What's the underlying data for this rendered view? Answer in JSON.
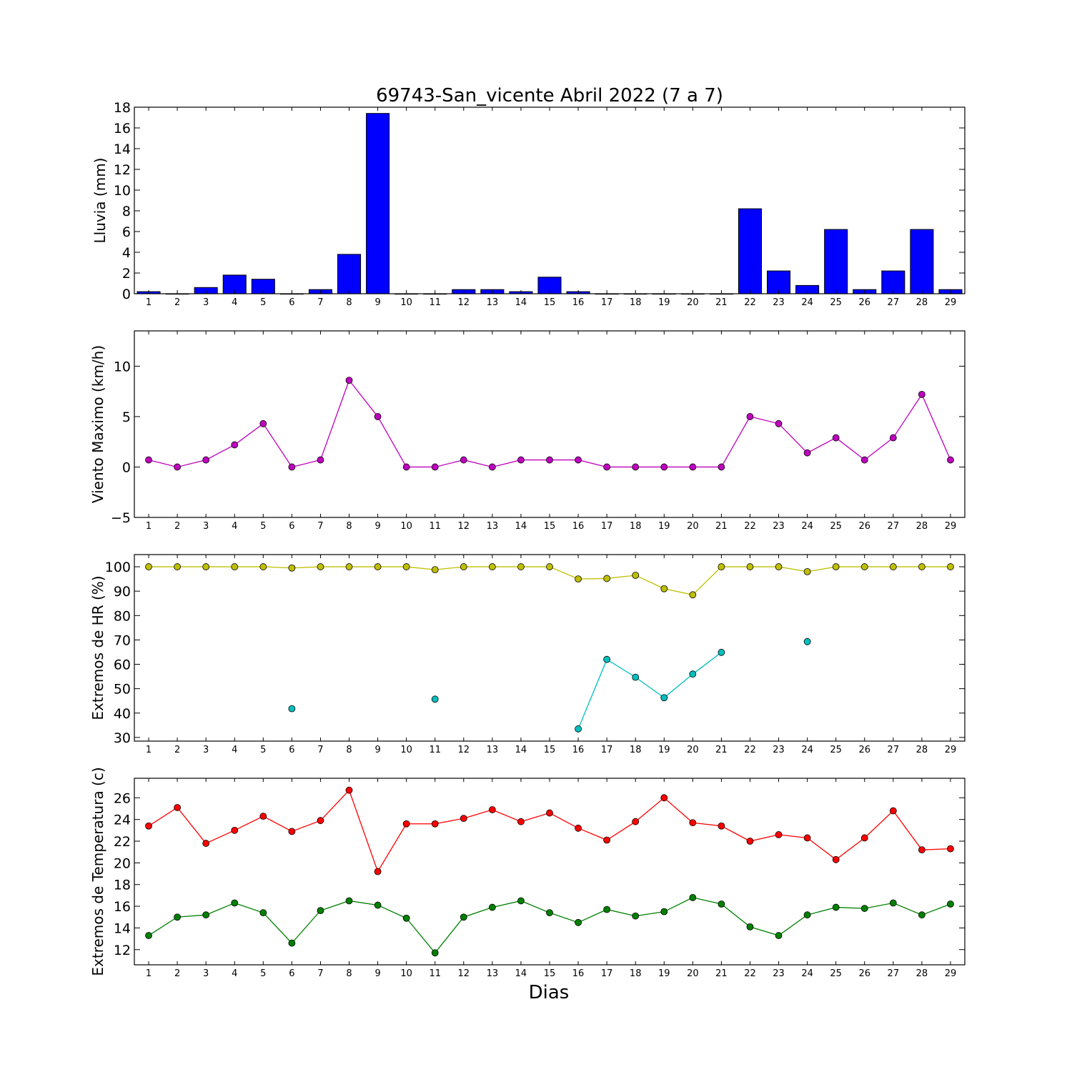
{
  "figure": {
    "title": "69743-San_vicente Abril 2022  (7 a 7)",
    "xlabel": "Dias"
  },
  "chart_data": [
    {
      "type": "bar",
      "title": "69743-San_vicente Abril 2022  (7 a 7)",
      "ylabel": "Lluvia (mm)",
      "xlabel": "",
      "ylim": [
        0,
        18
      ],
      "yticks": [
        0,
        2,
        4,
        6,
        8,
        10,
        12,
        14,
        16,
        18
      ],
      "categories": [
        1,
        2,
        3,
        4,
        5,
        6,
        7,
        8,
        9,
        10,
        11,
        12,
        13,
        14,
        15,
        16,
        17,
        18,
        19,
        20,
        21,
        22,
        23,
        24,
        25,
        26,
        27,
        28,
        29
      ],
      "series": [
        {
          "color": "#0000ff",
          "values": [
            0.2,
            0,
            0.6,
            1.8,
            1.4,
            0,
            0.4,
            3.8,
            17.4,
            0,
            0,
            0.4,
            0.4,
            0.2,
            1.6,
            0.2,
            0,
            0,
            0,
            0,
            0,
            8.2,
            2.2,
            0.8,
            6.2,
            0.4,
            2.2,
            6.2,
            0.4
          ]
        }
      ]
    },
    {
      "type": "line",
      "ylabel": "Viento Maximo (km/h)",
      "xlabel": "",
      "ylim": [
        -5,
        13.5
      ],
      "yticks": [
        -5,
        0,
        5,
        10
      ],
      "x": [
        1,
        2,
        3,
        4,
        5,
        6,
        7,
        8,
        9,
        10,
        11,
        12,
        13,
        14,
        15,
        16,
        17,
        18,
        19,
        20,
        21,
        22,
        23,
        24,
        25,
        26,
        27,
        28,
        29
      ],
      "series": [
        {
          "color": "#bf00bf",
          "values": [
            0.7,
            0,
            0.7,
            2.2,
            4.3,
            0,
            0.7,
            8.6,
            5.0,
            0,
            0,
            0.7,
            0,
            0.7,
            0.7,
            0.7,
            0,
            0,
            0,
            0,
            0,
            5.0,
            4.3,
            1.4,
            2.9,
            0.7,
            2.9,
            7.2,
            0.7
          ]
        }
      ]
    },
    {
      "type": "line",
      "ylabel": "Extremos de HR (%)",
      "xlabel": "",
      "ylim": [
        28.5,
        105
      ],
      "yticks": [
        30,
        40,
        50,
        60,
        70,
        80,
        90,
        100
      ],
      "x": [
        1,
        2,
        3,
        4,
        5,
        6,
        7,
        8,
        9,
        10,
        11,
        12,
        13,
        14,
        15,
        16,
        17,
        18,
        19,
        20,
        21,
        22,
        23,
        24,
        25,
        26,
        27,
        28,
        29
      ],
      "series": [
        {
          "color": "#bfbf00",
          "values": [
            100,
            100,
            100,
            100,
            100,
            99.5,
            100,
            100,
            100,
            100,
            98.8,
            100,
            100,
            100,
            100,
            95,
            95.2,
            96.5,
            91,
            88.5,
            100,
            100,
            100,
            98,
            100,
            100,
            100,
            100,
            100
          ]
        },
        {
          "color": "#00bfbf",
          "values": [
            null,
            null,
            null,
            null,
            null,
            41.8,
            null,
            null,
            null,
            null,
            45.7,
            null,
            null,
            null,
            null,
            33.5,
            62,
            54.7,
            46.3,
            56,
            64.9,
            null,
            null,
            69.3,
            null,
            null,
            null,
            null,
            null
          ]
        }
      ]
    },
    {
      "type": "line",
      "ylabel": "Extremos de Temperatura (c)",
      "xlabel": "Dias",
      "ylim": [
        10.6,
        27.8
      ],
      "yticks": [
        12,
        14,
        16,
        18,
        20,
        22,
        24,
        26
      ],
      "x": [
        1,
        2,
        3,
        4,
        5,
        6,
        7,
        8,
        9,
        10,
        11,
        12,
        13,
        14,
        15,
        16,
        17,
        18,
        19,
        20,
        21,
        22,
        23,
        24,
        25,
        26,
        27,
        28,
        29
      ],
      "series": [
        {
          "color": "#ff0000",
          "values": [
            23.4,
            25.1,
            21.8,
            23.0,
            24.3,
            22.9,
            23.9,
            26.7,
            19.2,
            23.6,
            23.6,
            24.1,
            24.9,
            23.8,
            24.6,
            23.2,
            22.1,
            23.8,
            26.0,
            23.7,
            23.4,
            22.0,
            22.6,
            22.3,
            20.3,
            22.3,
            24.8,
            21.2,
            21.3
          ]
        },
        {
          "color": "#008000",
          "values": [
            13.3,
            15.0,
            15.2,
            16.3,
            15.4,
            12.6,
            15.6,
            16.5,
            16.1,
            14.9,
            11.7,
            15.0,
            15.9,
            16.5,
            15.4,
            14.5,
            15.7,
            15.1,
            15.5,
            16.8,
            16.2,
            14.1,
            13.3,
            15.2,
            15.9,
            15.8,
            16.3,
            15.2,
            16.2
          ]
        }
      ]
    }
  ]
}
